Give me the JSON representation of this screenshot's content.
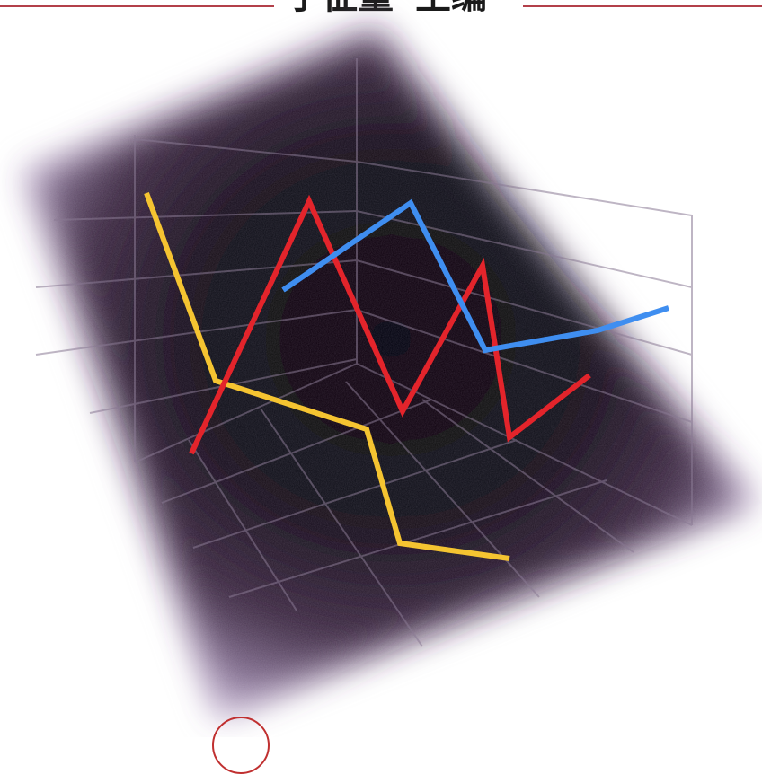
{
  "header": {
    "editor_name": "于征量",
    "role": "主编"
  },
  "colors": {
    "background": "#ffffff",
    "header_rule": "#b3404a",
    "header_text": "#1a1a1a",
    "cube_dark": "#050208",
    "cube_mid": "#3b2740",
    "cube_haze": "#b59cc4",
    "grid_line": "#8a7a94",
    "series_yellow": "#f5c431",
    "series_red": "#e3242b",
    "series_blue": "#3f8ef0",
    "circle": "#c03030"
  },
  "illustration": {
    "style": "3d-perspective-line-chart",
    "lines": [
      "yellow",
      "red",
      "blue"
    ],
    "decoration": "red-circle-outline-bottom"
  }
}
